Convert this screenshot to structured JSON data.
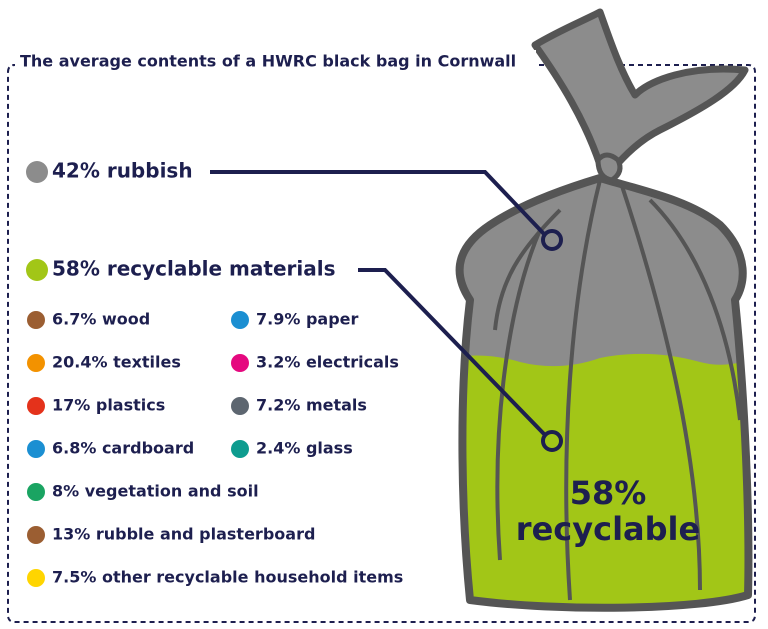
{
  "title": "The average contents of a HWRC black bag in Cornwall",
  "rubbish": {
    "label": "42% rubbish",
    "color": "#8c8c8c"
  },
  "recyclable": {
    "label": "58% recyclable materials",
    "color": "#a2c617"
  },
  "materials": [
    {
      "label": "6.7% wood",
      "color": "#9b5e32"
    },
    {
      "label": "7.9% paper",
      "color": "#1b8fd2"
    },
    {
      "label": "20.4% textiles",
      "color": "#f39200"
    },
    {
      "label": "3.2% electricals",
      "color": "#e5097f"
    },
    {
      "label": "17% plastics",
      "color": "#e4321b"
    },
    {
      "label": "7.2% metals",
      "color": "#5d6670"
    },
    {
      "label": "6.8% cardboard",
      "color": "#1b8fd2"
    },
    {
      "label": "2.4% glass",
      "color": "#0e9c8f"
    },
    {
      "label": "8% vegetation and soil",
      "color": "#1aa462"
    },
    {
      "label": "13% rubble and plasterboard",
      "color": "#9b5e32"
    },
    {
      "label": "7.5% other recyclable household items",
      "color": "#ffd500"
    }
  ],
  "bag_label": [
    "58%",
    "recyclable"
  ]
}
